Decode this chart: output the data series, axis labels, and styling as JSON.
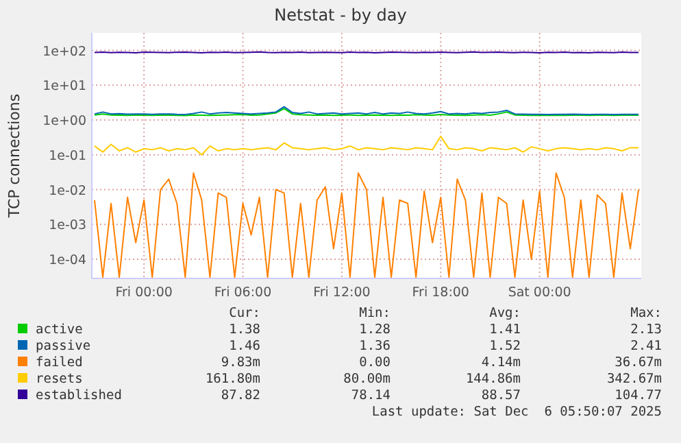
{
  "chart_data": {
    "type": "line",
    "title": "Netstat - by day",
    "ylabel": "TCP connections",
    "x": [
      "2025-12-04T21:00",
      "2025-12-04T21:30",
      "2025-12-04T22:00",
      "2025-12-04T22:30",
      "2025-12-04T23:00",
      "2025-12-04T23:30",
      "2025-12-05T00:00",
      "2025-12-05T00:30",
      "2025-12-05T01:00",
      "2025-12-05T01:30",
      "2025-12-05T02:00",
      "2025-12-05T02:30",
      "2025-12-05T03:00",
      "2025-12-05T03:30",
      "2025-12-05T04:00",
      "2025-12-05T04:30",
      "2025-12-05T05:00",
      "2025-12-05T05:30",
      "2025-12-05T06:00",
      "2025-12-05T06:30",
      "2025-12-05T07:00",
      "2025-12-05T07:30",
      "2025-12-05T08:00",
      "2025-12-05T08:30",
      "2025-12-05T09:00",
      "2025-12-05T09:30",
      "2025-12-05T10:00",
      "2025-12-05T10:30",
      "2025-12-05T11:00",
      "2025-12-05T11:30",
      "2025-12-05T12:00",
      "2025-12-05T12:30",
      "2025-12-05T13:00",
      "2025-12-05T13:30",
      "2025-12-05T14:00",
      "2025-12-05T14:30",
      "2025-12-05T15:00",
      "2025-12-05T15:30",
      "2025-12-05T16:00",
      "2025-12-05T16:30",
      "2025-12-05T17:00",
      "2025-12-05T17:30",
      "2025-12-05T18:00",
      "2025-12-05T18:30",
      "2025-12-05T19:00",
      "2025-12-05T19:30",
      "2025-12-05T20:00",
      "2025-12-05T20:30",
      "2025-12-05T21:00",
      "2025-12-05T21:30",
      "2025-12-05T22:00",
      "2025-12-05T22:30",
      "2025-12-05T23:00",
      "2025-12-05T23:30",
      "2025-12-06T00:00",
      "2025-12-06T00:30",
      "2025-12-06T01:00",
      "2025-12-06T01:30",
      "2025-12-06T02:00",
      "2025-12-06T02:30",
      "2025-12-06T03:00",
      "2025-12-06T03:30",
      "2025-12-06T04:00",
      "2025-12-06T04:30",
      "2025-12-06T05:00",
      "2025-12-06T05:30",
      "2025-12-06T06:00"
    ],
    "series": [
      {
        "name": "active",
        "color": "#00cc00",
        "values": [
          1.4,
          1.5,
          1.4,
          1.38,
          1.36,
          1.4,
          1.38,
          1.36,
          1.4,
          1.38,
          1.36,
          1.35,
          1.4,
          1.38,
          1.36,
          1.38,
          1.4,
          1.42,
          1.45,
          1.38,
          1.4,
          1.5,
          1.6,
          2.13,
          1.5,
          1.42,
          1.4,
          1.38,
          1.4,
          1.36,
          1.38,
          1.4,
          1.36,
          1.38,
          1.4,
          1.38,
          1.36,
          1.4,
          1.38,
          1.42,
          1.4,
          1.38,
          1.45,
          1.4,
          1.38,
          1.36,
          1.4,
          1.42,
          1.38,
          1.5,
          1.7,
          1.4,
          1.38,
          1.36,
          1.38,
          1.36,
          1.38,
          1.37,
          1.38,
          1.38,
          1.37,
          1.38,
          1.38,
          1.37,
          1.38,
          1.38,
          1.38
        ]
      },
      {
        "name": "passive",
        "color": "#0066b3",
        "values": [
          1.5,
          1.7,
          1.5,
          1.52,
          1.48,
          1.5,
          1.5,
          1.46,
          1.5,
          1.5,
          1.46,
          1.45,
          1.55,
          1.7,
          1.5,
          1.6,
          1.65,
          1.6,
          1.55,
          1.5,
          1.55,
          1.6,
          1.7,
          2.41,
          1.65,
          1.55,
          1.7,
          1.5,
          1.55,
          1.6,
          1.5,
          1.55,
          1.6,
          1.5,
          1.65,
          1.5,
          1.6,
          1.55,
          1.7,
          1.55,
          1.5,
          1.6,
          1.75,
          1.5,
          1.55,
          1.5,
          1.6,
          1.55,
          1.65,
          1.7,
          1.9,
          1.5,
          1.48,
          1.46,
          1.46,
          1.45,
          1.46,
          1.46,
          1.47,
          1.46,
          1.45,
          1.46,
          1.46,
          1.45,
          1.46,
          1.46,
          1.46
        ]
      },
      {
        "name": "failed",
        "color": "#ff8000",
        "values": [
          0.005,
          3e-05,
          0.004,
          3e-05,
          0.006,
          0.0003,
          0.005,
          3e-05,
          0.01,
          0.02,
          0.004,
          3e-05,
          0.03,
          0.005,
          3e-05,
          0.008,
          0.006,
          3e-05,
          0.004,
          0.0005,
          0.006,
          3e-05,
          0.01,
          0.008,
          3e-05,
          0.004,
          3e-05,
          0.005,
          0.012,
          0.0002,
          0.008,
          3e-05,
          0.03,
          0.01,
          3e-05,
          0.006,
          3e-05,
          0.005,
          0.004,
          3e-05,
          0.009,
          0.0003,
          0.006,
          3e-05,
          0.02,
          0.005,
          3e-05,
          0.008,
          3e-05,
          0.006,
          0.004,
          3e-05,
          0.005,
          0.0001,
          0.009,
          3e-05,
          0.03,
          0.006,
          3e-05,
          0.005,
          3e-05,
          0.007,
          0.004,
          3e-05,
          0.008,
          0.0002,
          0.01
        ]
      },
      {
        "name": "resets",
        "color": "#ffcc00",
        "values": [
          0.18,
          0.12,
          0.2,
          0.13,
          0.16,
          0.12,
          0.15,
          0.14,
          0.16,
          0.13,
          0.15,
          0.14,
          0.16,
          0.1,
          0.18,
          0.13,
          0.15,
          0.14,
          0.15,
          0.14,
          0.15,
          0.16,
          0.14,
          0.22,
          0.16,
          0.15,
          0.14,
          0.15,
          0.16,
          0.14,
          0.15,
          0.18,
          0.14,
          0.16,
          0.15,
          0.14,
          0.16,
          0.15,
          0.14,
          0.16,
          0.15,
          0.14,
          0.34,
          0.15,
          0.14,
          0.16,
          0.15,
          0.13,
          0.16,
          0.15,
          0.14,
          0.16,
          0.12,
          0.17,
          0.15,
          0.13,
          0.15,
          0.16,
          0.15,
          0.14,
          0.15,
          0.14,
          0.16,
          0.15,
          0.13,
          0.16,
          0.16
        ]
      },
      {
        "name": "established",
        "color": "#330099",
        "values": [
          88,
          90,
          87,
          89,
          88,
          86,
          90,
          89,
          88,
          87,
          89,
          90,
          88,
          86,
          89,
          88,
          90,
          87,
          88,
          89,
          91,
          88,
          87,
          89,
          88,
          90,
          87,
          88,
          89,
          88,
          87,
          90,
          88,
          89,
          86,
          88,
          90,
          89,
          88,
          87,
          89,
          88,
          90,
          88,
          87,
          89,
          91,
          88,
          89,
          90,
          88,
          87,
          89,
          88,
          86,
          89,
          88,
          90,
          87,
          88,
          86,
          89,
          88,
          87,
          90,
          88,
          88
        ]
      }
    ],
    "log": true,
    "ylim": [
      2.8e-05,
      320
    ],
    "yticks": [
      {
        "value": 0.0001,
        "label": "1e-04"
      },
      {
        "value": 0.001,
        "label": "1e-03"
      },
      {
        "value": 0.01,
        "label": "1e-02"
      },
      {
        "value": 0.1,
        "label": "1e-01"
      },
      {
        "value": 1,
        "label": "1e+00"
      },
      {
        "value": 10,
        "label": "1e+01"
      },
      {
        "value": 100,
        "label": "1e+02"
      }
    ],
    "xlim": [
      "2025-12-04T20:50",
      "2025-12-06T06:10"
    ],
    "xticks": [
      {
        "value": "2025-12-05T00:00",
        "label": "Fri 00:00"
      },
      {
        "value": "2025-12-05T06:00",
        "label": "Fri 06:00"
      },
      {
        "value": "2025-12-05T12:00",
        "label": "Fri 12:00"
      },
      {
        "value": "2025-12-05T18:00",
        "label": "Fri 18:00"
      },
      {
        "value": "2025-12-06T00:00",
        "label": "Sat 00:00"
      }
    ],
    "grid": true,
    "legend": "bottom",
    "annotations": [
      "Cur:",
      "Min:",
      "Avg:",
      "Max:",
      "1.38",
      "1.28",
      "1.41",
      "2.13",
      "1.46",
      "1.36",
      "1.52",
      "2.41",
      "9.83m",
      "0.00",
      "4.14m",
      "36.67m",
      "161.80m",
      "80.00m",
      "144.86m",
      "342.67m",
      "87.82",
      "78.14",
      "88.57",
      "104.77",
      "Last update: Sat Dec  6 05:50:07 2025"
    ]
  }
}
